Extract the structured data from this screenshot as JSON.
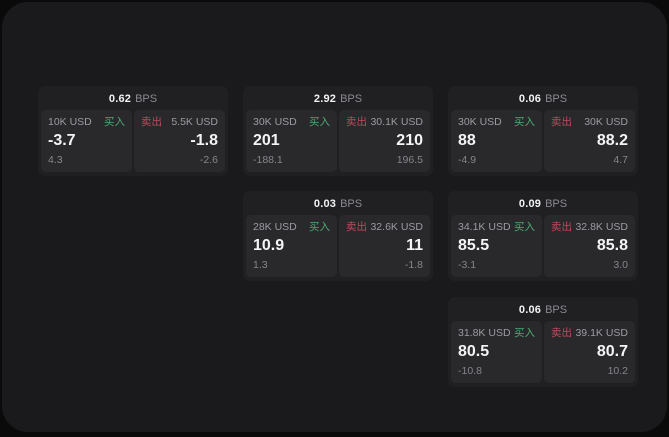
{
  "labels": {
    "bps_unit": "BPS",
    "buy": "买入",
    "sell": "卖出"
  },
  "colors": {
    "background": "#0a0a0b",
    "panel": "#1a1a1c",
    "card": "#202023",
    "tile": "#29292c",
    "text_primary": "#f4f4f6",
    "text_secondary": "#9b9ba1",
    "buy_green": "#4fa873",
    "sell_red": "#bd4a5c"
  },
  "cards": [
    {
      "bps": "0.62",
      "buy": {
        "amount": "10K USD",
        "value": "-3.7",
        "secondary": "4.3"
      },
      "sell": {
        "amount": "5.5K USD",
        "value": "-1.8",
        "secondary": "-2.6"
      }
    },
    {
      "bps": "2.92",
      "buy": {
        "amount": "30K USD",
        "value": "201",
        "secondary": "-188.1"
      },
      "sell": {
        "amount": "30.1K USD",
        "value": "210",
        "secondary": "196.5"
      }
    },
    {
      "bps": "0.06",
      "buy": {
        "amount": "30K USD",
        "value": "88",
        "secondary": "-4.9"
      },
      "sell": {
        "amount": "30K USD",
        "value": "88.2",
        "secondary": "4.7"
      }
    },
    {
      "bps": "0.03",
      "buy": {
        "amount": "28K USD",
        "value": "10.9",
        "secondary": "1.3"
      },
      "sell": {
        "amount": "32.6K USD",
        "value": "11",
        "secondary": "-1.8"
      }
    },
    {
      "bps": "0.09",
      "buy": {
        "amount": "34.1K USD",
        "value": "85.5",
        "secondary": "-3.1"
      },
      "sell": {
        "amount": "32.8K USD",
        "value": "85.8",
        "secondary": "3.0"
      }
    },
    {
      "bps": "0.06",
      "buy": {
        "amount": "31.8K USD",
        "value": "80.5",
        "secondary": "-10.8"
      },
      "sell": {
        "amount": "39.1K USD",
        "value": "80.7",
        "secondary": "10.2"
      }
    }
  ]
}
